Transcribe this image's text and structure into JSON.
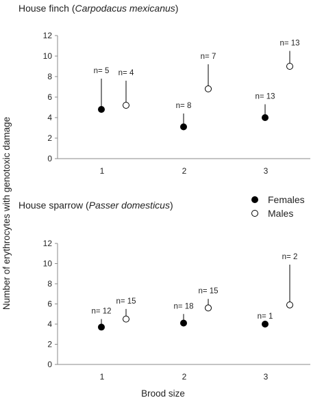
{
  "chart_data": [
    {
      "type": "scatter",
      "title_prefix": "House finch (",
      "title_italic": "Carpodacus mexicanus",
      "title_suffix": ")",
      "xlabel": "Brood size",
      "ylabel": "Number of erythrocytes with genotoxic damage",
      "categories": [
        "1",
        "2",
        "3"
      ],
      "ylim": [
        0,
        12
      ],
      "yticks": [
        0,
        2,
        4,
        6,
        8,
        10,
        12
      ],
      "series": [
        {
          "name": "Females",
          "marker": "filled",
          "values": [
            4.8,
            3.1,
            4.0
          ],
          "upper": [
            7.8,
            4.4,
            5.3
          ],
          "n_labels": [
            "n= 5",
            "n= 8",
            "n= 13"
          ]
        },
        {
          "name": "Males",
          "marker": "open",
          "values": [
            5.2,
            6.8,
            9.0
          ],
          "upper": [
            7.6,
            9.2,
            10.5
          ],
          "n_labels": [
            "n= 4",
            "n= 7",
            "n= 13"
          ]
        }
      ]
    },
    {
      "type": "scatter",
      "title_prefix": "House sparrow (",
      "title_italic": "Passer domesticus",
      "title_suffix": ")",
      "xlabel": "Brood size",
      "ylabel": "Number of erythrocytes with genotoxic damage",
      "categories": [
        "1",
        "2",
        "3"
      ],
      "ylim": [
        0,
        12
      ],
      "yticks": [
        0,
        2,
        4,
        6,
        8,
        10,
        12
      ],
      "series": [
        {
          "name": "Females",
          "marker": "filled",
          "values": [
            3.7,
            4.1,
            4.0
          ],
          "upper": [
            4.5,
            5.0,
            4.0
          ],
          "n_labels": [
            "n= 12",
            "n= 18",
            "n= 1"
          ]
        },
        {
          "name": "Males",
          "marker": "open",
          "values": [
            4.5,
            5.6,
            5.9
          ],
          "upper": [
            5.5,
            6.5,
            9.9
          ],
          "n_labels": [
            "n= 15",
            "n= 15",
            "n= 2"
          ]
        }
      ]
    }
  ],
  "legend": {
    "placement": "between-panels-right",
    "items": [
      {
        "label": "Females",
        "marker": "filled"
      },
      {
        "label": "Males",
        "marker": "open"
      }
    ]
  },
  "shared_ylabel": "Number of erythrocytes with genotoxic damage",
  "shared_xlabel": "Brood size"
}
